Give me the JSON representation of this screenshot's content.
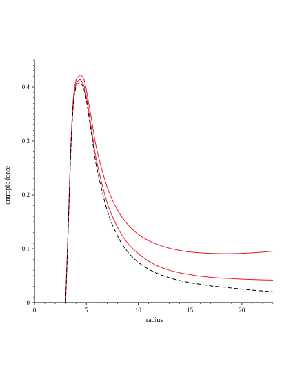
{
  "chart_data": {
    "type": "line",
    "title": "",
    "xlabel": "radius",
    "ylabel": "entropic force",
    "xlim": [
      0,
      23
    ],
    "ylim": [
      0,
      0.45
    ],
    "x_ticks": [
      0,
      5,
      10,
      15,
      20
    ],
    "y_ticks": [
      0,
      0.1,
      0.2,
      0.3,
      0.4
    ],
    "x_tick_labels": [
      "0",
      "5",
      "10",
      "15",
      "20"
    ],
    "y_tick_labels": [
      "0",
      "0.1",
      "0.2",
      "0.3",
      "0.4"
    ],
    "grid": false,
    "legend": "none",
    "series": [
      {
        "color": "#e8192c",
        "dash": "solid",
        "x": [
          3.0,
          3.25,
          3.5,
          3.75,
          4.0,
          4.25,
          4.45,
          4.75,
          5.0,
          5.5,
          6.0,
          7.0,
          8.0,
          9.0,
          10.0,
          11.0,
          12.0,
          13.0,
          14.0,
          15.0,
          16.0,
          17.0,
          18.0,
          19.0,
          20.0,
          21.0,
          22.0,
          23.0
        ],
        "y": [
          0.0,
          0.14,
          0.29,
          0.38,
          0.412,
          0.42,
          0.422,
          0.415,
          0.395,
          0.34,
          0.285,
          0.215,
          0.172,
          0.145,
          0.127,
          0.115,
          0.107,
          0.101,
          0.097,
          0.094,
          0.0925,
          0.0915,
          0.091,
          0.091,
          0.0915,
          0.0925,
          0.0938,
          0.0955
        ]
      },
      {
        "color": "#e8192c",
        "dash": "solid",
        "x": [
          3.0,
          3.25,
          3.5,
          3.75,
          4.0,
          4.25,
          4.45,
          4.75,
          5.0,
          5.5,
          6.0,
          7.0,
          8.0,
          9.0,
          10.0,
          11.0,
          12.0,
          13.0,
          14.0,
          15.0,
          16.0,
          17.0,
          18.0,
          19.0,
          20.0,
          21.0,
          22.0,
          23.0
        ],
        "y": [
          0.0,
          0.138,
          0.285,
          0.372,
          0.405,
          0.412,
          0.413,
          0.403,
          0.383,
          0.322,
          0.262,
          0.186,
          0.14,
          0.11,
          0.091,
          0.077,
          0.067,
          0.06,
          0.0555,
          0.052,
          0.049,
          0.047,
          0.0455,
          0.0445,
          0.0435,
          0.0428,
          0.0422,
          0.0418
        ]
      },
      {
        "color": "#000000",
        "dash": "dashed",
        "x": [
          3.0,
          3.25,
          3.5,
          3.75,
          4.0,
          4.25,
          4.45,
          4.75,
          5.0,
          5.5,
          6.0,
          7.0,
          8.0,
          9.0,
          10.0,
          11.0,
          12.0,
          13.0,
          14.0,
          15.0,
          16.0,
          17.0,
          18.0,
          19.0,
          20.0,
          21.0,
          22.0,
          23.0
        ],
        "y": [
          0.0,
          0.135,
          0.28,
          0.368,
          0.4,
          0.407,
          0.408,
          0.397,
          0.376,
          0.313,
          0.251,
          0.172,
          0.124,
          0.094,
          0.075,
          0.062,
          0.053,
          0.046,
          0.041,
          0.037,
          0.034,
          0.031,
          0.029,
          0.027,
          0.025,
          0.023,
          0.0215,
          0.02
        ]
      }
    ]
  }
}
